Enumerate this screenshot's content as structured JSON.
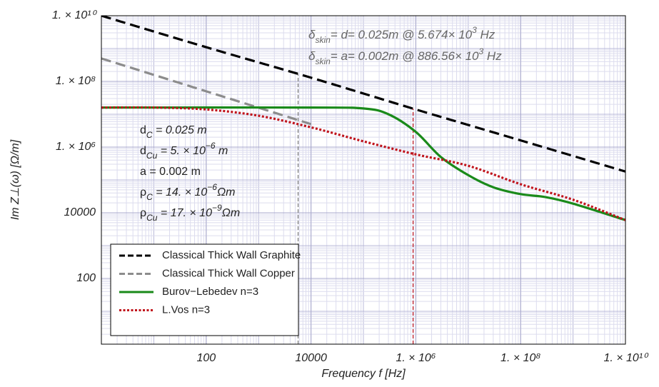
{
  "chart_data": {
    "type": "line",
    "xlabel": "Frequency  f  [Hz]",
    "ylabel": "Im  Z⊥(ω)  [Ω/m]",
    "xlog": true,
    "ylog": true,
    "grid": true,
    "legend": "lower-left",
    "xlim": [
      1,
      10000000000
    ],
    "ylim": [
      1,
      10000000000
    ],
    "xticks": [
      100,
      10000,
      {
        "value": 1000000,
        "label": "1. × 10⁶"
      },
      {
        "value": 100000000,
        "label": "1. × 10⁸"
      },
      {
        "value": 10000000000,
        "label": "1. × 10¹⁰"
      }
    ],
    "yticks": [
      100,
      10000,
      {
        "value": 1000000,
        "label": "1. × 10⁶"
      },
      {
        "value": 100000000,
        "label": "1. × 10⁸"
      },
      {
        "value": 10000000000,
        "label": "1. × 10¹⁰"
      }
    ],
    "series": [
      {
        "name": "Classical Thick Wall Graphite",
        "color": "#000000",
        "dash": "dashed",
        "x": [
          1,
          100,
          10000,
          1000000,
          100000000,
          10000000000
        ],
        "values": [
          10000000000,
          1100000000,
          130000000,
          14000000,
          1600000,
          180000
        ]
      },
      {
        "name": "Classical Thick Wall Copper",
        "color": "#8c8c8c",
        "dash": "dashed",
        "x": [
          1,
          100,
          10000
        ],
        "values": [
          500000000,
          50000000,
          5000000
        ]
      },
      {
        "name": "Burov−Lebedev n=3",
        "color": "#1a8a1a",
        "dash": "solid",
        "x": [
          1,
          10000,
          100000,
          300000,
          1000000,
          3000000,
          10000000,
          30000000,
          100000000,
          300000000,
          1000000000,
          10000000000
        ],
        "values": [
          16000000,
          16000000,
          15000000,
          10000000,
          2900000,
          500000,
          140000,
          60000,
          37000,
          30000,
          19000,
          6000
        ]
      },
      {
        "name": "L.Vos n=3",
        "color": "#c0141c",
        "dash": "dotted",
        "x": [
          1,
          10,
          100,
          1000,
          10000,
          100000,
          1000000,
          10000000,
          100000000,
          1000000000,
          10000000000
        ],
        "values": [
          16000000,
          16000000,
          14000000,
          9000000,
          4000000,
          1500000,
          600000,
          270000,
          74000,
          25000,
          6000
        ]
      }
    ],
    "vlines": [
      {
        "x": 5674,
        "color": "#777777"
      },
      {
        "x": 886560,
        "color": "#c0141c"
      }
    ],
    "annotations": [
      [
        {
          "t": "δ"
        },
        {
          "t": "skin",
          "s": "sub"
        },
        {
          "t": "= d= 0.025m @ 5.674× 10"
        },
        {
          "t": "3",
          "s": "sup"
        },
        {
          "t": " Hz"
        }
      ],
      [
        {
          "t": "δ"
        },
        {
          "t": "skin",
          "s": "sub"
        },
        {
          "t": "= a= 0.002m @ 886.56× 10"
        },
        {
          "t": "3",
          "s": "sup"
        },
        {
          "t": " Hz"
        }
      ]
    ],
    "parameters": [
      [
        {
          "t": "d"
        },
        {
          "t": "C",
          "s": "sub"
        },
        {
          "t": "   = 0.025 m"
        }
      ],
      [
        {
          "t": "d"
        },
        {
          "t": "Cu",
          "s": "sub"
        },
        {
          "t": " = 5. × 10"
        },
        {
          "t": "−6",
          "s": "sup"
        },
        {
          "t": " m"
        }
      ],
      [
        {
          "t": "a    = 0.002 m"
        }
      ],
      [
        {
          "t": "ρ"
        },
        {
          "t": "C",
          "s": "sub"
        },
        {
          "t": "   = 14. × 10"
        },
        {
          "t": "−6",
          "s": "sup"
        },
        {
          "t": "Ωm"
        }
      ],
      [
        {
          "t": "ρ"
        },
        {
          "t": "Cu",
          "s": "sub"
        },
        {
          "t": " = 17. × 10"
        },
        {
          "t": "−9",
          "s": "sup"
        },
        {
          "t": "Ωm"
        }
      ]
    ]
  }
}
